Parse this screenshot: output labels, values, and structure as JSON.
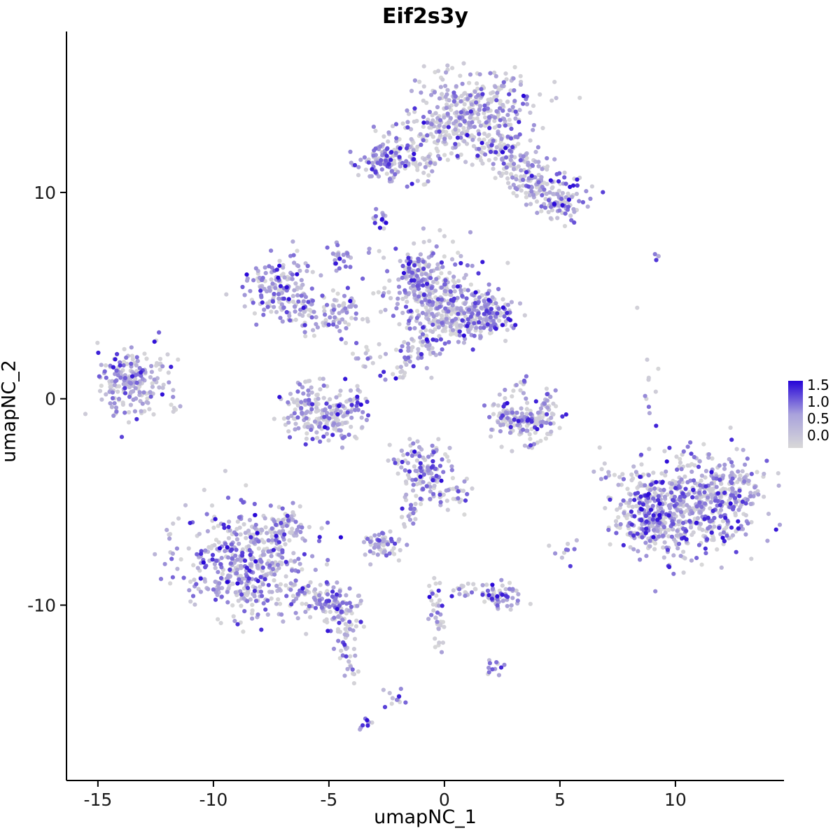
{
  "chart_data": {
    "type": "scatter",
    "title": "Eif2s3y",
    "xlabel": "umapNC_1",
    "ylabel": "umapNC_2",
    "grid": false,
    "legend_position": "right",
    "x_tick_values": [
      -15,
      -10,
      -5,
      0,
      5,
      10
    ],
    "x_tick_labels": [
      "-15",
      "-10",
      "-5",
      "0",
      "5",
      "10"
    ],
    "y_tick_values": [
      -10,
      0,
      10
    ],
    "y_tick_labels": [
      "-10",
      "0",
      "10"
    ],
    "xlim": [
      -16.36,
      14.7
    ],
    "ylim": [
      -18.5,
      17.8
    ],
    "point_radius": 3.1,
    "seed": 7,
    "color_scale": {
      "low": "#d8d8d8",
      "high": "#2604d8",
      "vmin": 0.0,
      "vmax": 1.75,
      "legend_tick_labels": [
        "1.5",
        "1.0",
        "0.5",
        "0.0"
      ]
    },
    "value_buckets": [
      [
        0.0,
        0.12
      ],
      [
        0.2,
        0.55
      ],
      [
        0.55,
        1.05
      ],
      [
        1.1,
        1.75
      ]
    ],
    "clusters": [
      {
        "name": "top-main",
        "cx": 1.2,
        "cy": 14.0,
        "sx": 1.35,
        "sy": 0.95,
        "n": 330,
        "w": [
          0.5,
          0.28,
          0.16,
          0.06
        ]
      },
      {
        "name": "top-main-fringe",
        "cx": 0.0,
        "cy": 12.6,
        "sx": 0.9,
        "sy": 0.5,
        "n": 80,
        "w": [
          0.55,
          0.3,
          0.12,
          0.03
        ]
      },
      {
        "name": "top-neck",
        "cx": 2.2,
        "cy": 12.2,
        "sx": 0.6,
        "sy": 0.6,
        "n": 60,
        "w": [
          0.5,
          0.3,
          0.15,
          0.05
        ]
      },
      {
        "name": "top-right-trail",
        "line": [
          2.6,
          11.9,
          5.2,
          9.6
        ],
        "jw": 0.55,
        "n": 170,
        "w": [
          0.48,
          0.3,
          0.16,
          0.06
        ]
      },
      {
        "name": "trail-end-blob",
        "cx": 5.0,
        "cy": 9.3,
        "sx": 0.45,
        "sy": 0.4,
        "n": 45,
        "w": [
          0.35,
          0.3,
          0.2,
          0.15
        ]
      },
      {
        "name": "trail-mid-blob",
        "cx": 3.6,
        "cy": 10.3,
        "sx": 0.35,
        "sy": 0.3,
        "n": 25,
        "w": [
          0.5,
          0.3,
          0.15,
          0.05
        ]
      },
      {
        "name": "topleft-dense",
        "cx": -2.6,
        "cy": 11.6,
        "sx": 0.6,
        "sy": 0.55,
        "n": 110,
        "w": [
          0.25,
          0.35,
          0.28,
          0.12
        ]
      },
      {
        "name": "topleft-bridge",
        "cx": -1.3,
        "cy": 11.4,
        "sx": 0.5,
        "sy": 0.35,
        "n": 40,
        "w": [
          0.55,
          0.3,
          0.12,
          0.03
        ]
      },
      {
        "name": "spot-upper",
        "cx": -2.85,
        "cy": 8.75,
        "sx": 0.17,
        "sy": 0.25,
        "n": 14,
        "w": [
          0.2,
          0.3,
          0.3,
          0.2
        ]
      },
      {
        "name": "spot-small",
        "cx": -4.5,
        "cy": 6.9,
        "sx": 0.22,
        "sy": 0.4,
        "n": 28,
        "w": [
          0.25,
          0.35,
          0.25,
          0.15
        ]
      },
      {
        "name": "midleft-purple",
        "cx": -7.2,
        "cy": 5.4,
        "sx": 0.75,
        "sy": 0.85,
        "n": 150,
        "w": [
          0.3,
          0.35,
          0.25,
          0.1
        ]
      },
      {
        "name": "midleft-arm",
        "cx": -5.4,
        "cy": 4.1,
        "sx": 0.85,
        "sy": 0.55,
        "n": 80,
        "w": [
          0.45,
          0.3,
          0.18,
          0.07
        ]
      },
      {
        "name": "midleft-knob",
        "cx": -4.4,
        "cy": 4.6,
        "sx": 0.3,
        "sy": 0.3,
        "n": 20,
        "w": [
          0.4,
          0.3,
          0.2,
          0.1
        ]
      },
      {
        "name": "central-big",
        "cx": -0.6,
        "cy": 5.0,
        "sx": 1.05,
        "sy": 1.05,
        "n": 300,
        "w": [
          0.42,
          0.3,
          0.2,
          0.08
        ]
      },
      {
        "name": "central-top-dense",
        "cx": -1.3,
        "cy": 6.2,
        "sx": 0.4,
        "sy": 0.4,
        "n": 50,
        "w": [
          0.3,
          0.35,
          0.25,
          0.1
        ]
      },
      {
        "name": "central-right-arm",
        "cx": 0.9,
        "cy": 3.9,
        "sx": 0.9,
        "sy": 0.55,
        "n": 130,
        "w": [
          0.45,
          0.3,
          0.18,
          0.07
        ]
      },
      {
        "name": "right-knot",
        "cx": 1.95,
        "cy": 4.2,
        "sx": 0.5,
        "sy": 0.55,
        "n": 110,
        "w": [
          0.25,
          0.3,
          0.28,
          0.17
        ]
      },
      {
        "name": "central-below",
        "cx": -0.9,
        "cy": 2.6,
        "sx": 0.4,
        "sy": 0.5,
        "n": 40,
        "w": [
          0.5,
          0.3,
          0.15,
          0.05
        ]
      },
      {
        "name": "central-dangle",
        "line": [
          -1.5,
          2.3,
          -2.2,
          0.8
        ],
        "jw": 0.25,
        "n": 25,
        "w": [
          0.45,
          0.3,
          0.18,
          0.07
        ]
      },
      {
        "name": "far-left",
        "cx": -13.6,
        "cy": 0.9,
        "sx": 0.8,
        "sy": 0.8,
        "n": 190,
        "w": [
          0.33,
          0.37,
          0.22,
          0.08
        ]
      },
      {
        "name": "far-left-outlier",
        "cx": -12.1,
        "cy": 1.9,
        "sx": 0.3,
        "sy": 0.3,
        "n": 8,
        "w": [
          0.5,
          0.3,
          0.15,
          0.05
        ]
      },
      {
        "name": "far-left-outlier2",
        "cx": -11.8,
        "cy": -0.3,
        "sx": 0.3,
        "sy": 0.3,
        "n": 6,
        "w": [
          0.6,
          0.25,
          0.1,
          0.05
        ]
      },
      {
        "name": "arc-left",
        "cx": -6.0,
        "cy": -0.6,
        "sx": 0.55,
        "sy": 0.75,
        "n": 100,
        "w": [
          0.45,
          0.3,
          0.17,
          0.08
        ]
      },
      {
        "name": "arc-right",
        "cx": -4.8,
        "cy": -1.0,
        "sx": 0.5,
        "sy": 0.6,
        "n": 90,
        "w": [
          0.45,
          0.3,
          0.17,
          0.08
        ]
      },
      {
        "name": "arc-tip",
        "cx": -4.0,
        "cy": -0.2,
        "sx": 0.3,
        "sy": 0.4,
        "n": 30,
        "w": [
          0.4,
          0.3,
          0.2,
          0.1
        ]
      },
      {
        "name": "right-arc-left",
        "cx": 2.9,
        "cy": -0.9,
        "sx": 0.5,
        "sy": 0.5,
        "n": 70,
        "w": [
          0.45,
          0.3,
          0.17,
          0.08
        ]
      },
      {
        "name": "right-arc-right",
        "cx": 3.9,
        "cy": -1.2,
        "sx": 0.55,
        "sy": 0.5,
        "n": 80,
        "w": [
          0.4,
          0.3,
          0.18,
          0.12
        ]
      },
      {
        "name": "right-arc-tip",
        "cx": 4.5,
        "cy": -0.4,
        "sx": 0.3,
        "sy": 0.4,
        "n": 25,
        "w": [
          0.45,
          0.3,
          0.17,
          0.08
        ]
      },
      {
        "name": "right-arc-top",
        "cx": 3.2,
        "cy": 0.7,
        "sx": 0.3,
        "sy": 0.3,
        "n": 12,
        "w": [
          0.5,
          0.3,
          0.15,
          0.05
        ]
      },
      {
        "name": "mid-small",
        "cx": -0.9,
        "cy": -3.5,
        "sx": 0.6,
        "sy": 0.75,
        "n": 130,
        "w": [
          0.3,
          0.33,
          0.25,
          0.12
        ]
      },
      {
        "name": "mid-small-arm",
        "cx": 0.3,
        "cy": -4.6,
        "sx": 0.5,
        "sy": 0.4,
        "n": 35,
        "w": [
          0.45,
          0.3,
          0.18,
          0.07
        ]
      },
      {
        "name": "mid-small-tail",
        "line": [
          -1.4,
          -4.6,
          -1.6,
          -6.3
        ],
        "jw": 0.2,
        "n": 18,
        "w": [
          0.4,
          0.3,
          0.2,
          0.1
        ]
      },
      {
        "name": "big-right",
        "cx": 10.4,
        "cy": -5.2,
        "sx": 1.55,
        "sy": 1.25,
        "n": 620,
        "w": [
          0.38,
          0.3,
          0.2,
          0.12
        ]
      },
      {
        "name": "big-right-dense-edge",
        "cx": 8.9,
        "cy": -5.6,
        "sx": 0.6,
        "sy": 0.8,
        "n": 120,
        "w": [
          0.25,
          0.3,
          0.28,
          0.17
        ]
      },
      {
        "name": "big-right-grey-edge",
        "cx": 12.6,
        "cy": -4.2,
        "sx": 0.5,
        "sy": 0.7,
        "n": 60,
        "w": [
          0.55,
          0.3,
          0.12,
          0.03
        ]
      },
      {
        "name": "sparse-above-right",
        "cx": 8.8,
        "cy": 0.6,
        "sx": 0.25,
        "sy": 0.9,
        "n": 10,
        "w": [
          0.6,
          0.25,
          0.1,
          0.05
        ]
      },
      {
        "name": "tiny-pair-right",
        "cx": 9.4,
        "cy": 6.9,
        "sx": 0.2,
        "sy": 0.15,
        "n": 4,
        "w": [
          0.1,
          0.2,
          0.3,
          0.4
        ]
      },
      {
        "name": "lone-grey-right",
        "cx": 8.3,
        "cy": 4.4,
        "sx": 0.05,
        "sy": 0.05,
        "n": 1,
        "w": [
          1,
          0,
          0,
          0
        ]
      },
      {
        "name": "bottom-left-big",
        "cx": -8.6,
        "cy": -7.9,
        "sx": 1.35,
        "sy": 1.35,
        "n": 480,
        "w": [
          0.35,
          0.33,
          0.22,
          0.1
        ]
      },
      {
        "name": "bottom-left-top",
        "cx": -7.0,
        "cy": -6.3,
        "sx": 0.5,
        "sy": 0.5,
        "n": 60,
        "w": [
          0.4,
          0.33,
          0.2,
          0.07
        ]
      },
      {
        "name": "bottom-bridge",
        "line": [
          -6.4,
          -9.3,
          -5.0,
          -10.0
        ],
        "jw": 0.4,
        "n": 60,
        "w": [
          0.4,
          0.3,
          0.2,
          0.1
        ]
      },
      {
        "name": "bottom-knot",
        "cx": -4.5,
        "cy": -10.1,
        "sx": 0.5,
        "sy": 0.6,
        "n": 90,
        "w": [
          0.3,
          0.32,
          0.25,
          0.13
        ]
      },
      {
        "name": "bottom-tail",
        "line": [
          -4.6,
          -11.2,
          -3.9,
          -13.7
        ],
        "jw": 0.22,
        "n": 30,
        "w": [
          0.5,
          0.3,
          0.15,
          0.05
        ]
      },
      {
        "name": "tail-dot-low",
        "cx": -3.4,
        "cy": -15.8,
        "sx": 0.2,
        "sy": 0.2,
        "n": 9,
        "w": [
          0.3,
          0.3,
          0.25,
          0.15
        ]
      },
      {
        "name": "tail-dot-low2",
        "cx": -2.1,
        "cy": -14.5,
        "sx": 0.25,
        "sy": 0.35,
        "n": 12,
        "w": [
          0.35,
          0.3,
          0.22,
          0.13
        ]
      },
      {
        "name": "small-dense-mid",
        "cx": -2.7,
        "cy": -7.1,
        "sx": 0.45,
        "sy": 0.33,
        "n": 55,
        "w": [
          0.4,
          0.32,
          0.2,
          0.08
        ]
      },
      {
        "name": "vertical-trail",
        "line": [
          -0.45,
          -8.6,
          -0.1,
          -12.3
        ],
        "jw": 0.15,
        "n": 38,
        "w": [
          0.62,
          0.22,
          0.1,
          0.06
        ]
      },
      {
        "name": "bottom-mid-right",
        "cx": 2.3,
        "cy": -9.6,
        "sx": 0.6,
        "sy": 0.38,
        "n": 60,
        "w": [
          0.35,
          0.32,
          0.22,
          0.11
        ]
      },
      {
        "name": "bottom-mid-dotset",
        "cx": 0.85,
        "cy": -9.1,
        "sx": 0.25,
        "sy": 0.25,
        "n": 14,
        "w": [
          0.45,
          0.3,
          0.17,
          0.08
        ]
      },
      {
        "name": "low-dot-purple",
        "cx": 2.0,
        "cy": -12.8,
        "sx": 0.25,
        "sy": 0.3,
        "n": 12,
        "w": [
          0.3,
          0.3,
          0.25,
          0.15
        ]
      },
      {
        "name": "pair-right-low",
        "cx": 5.25,
        "cy": -7.3,
        "sx": 0.2,
        "sy": 0.3,
        "n": 9,
        "w": [
          0.25,
          0.3,
          0.3,
          0.15
        ]
      },
      {
        "name": "sparse-between",
        "cx": 0.2,
        "cy": 7.9,
        "sx": 0.5,
        "sy": 0.5,
        "n": 8,
        "w": [
          0.55,
          0.3,
          0.1,
          0.05
        ]
      },
      {
        "name": "sparse-left-mid",
        "cx": -3.3,
        "cy": 2.0,
        "sx": 0.5,
        "sy": 0.6,
        "n": 18,
        "w": [
          0.5,
          0.3,
          0.14,
          0.06
        ]
      },
      {
        "name": "sparse-top-right",
        "cx": 6.3,
        "cy": 9.8,
        "sx": 0.3,
        "sy": 0.4,
        "n": 6,
        "w": [
          0.5,
          0.3,
          0.15,
          0.05
        ]
      }
    ]
  }
}
